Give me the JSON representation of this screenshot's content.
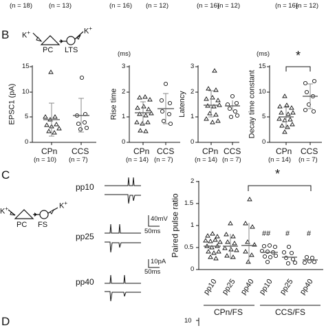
{
  "top_strip": {
    "labels": [
      "(n = 18)",
      "(n = 13)",
      "(n = 16)",
      "(n = 12)",
      "(n = 16)",
      "(n = 12)",
      "(n = 16)",
      "(n = 12)"
    ]
  },
  "panel_b": {
    "letter": "B",
    "schematic": {
      "pre": "PC",
      "post": "LTS",
      "ion_left": "K",
      "ion_right": "K",
      "sup": "+"
    },
    "charts": [
      {
        "unit": "",
        "ylabel": "EPSC1 (pA)",
        "yticks": [
          "0",
          "5",
          "10",
          "15"
        ],
        "categories": [
          "CPn",
          "CCS"
        ],
        "n": [
          "(n = 10)",
          "(n = 7)"
        ]
      },
      {
        "unit": "(ms)",
        "ylabel": "Rise time",
        "yticks": [
          "0",
          "1",
          "2",
          "3"
        ],
        "categories": [
          "CPn",
          "CCS"
        ],
        "n": [
          "(n = 14)",
          "(n = 7)"
        ]
      },
      {
        "unit": "",
        "ylabel": "Latency",
        "yticks": [
          "0",
          "1",
          "2",
          "3"
        ],
        "categories": [
          "CPn",
          "CCS"
        ],
        "n": [
          "(n = 14)",
          "(n = 7)"
        ]
      },
      {
        "unit": "(ms)",
        "ylabel": "Decay time constant",
        "yticks": [
          "0",
          "5",
          "10",
          "15"
        ],
        "categories": [
          "CPn",
          "CCS"
        ],
        "n": [
          "(n = 14)",
          "(n = 7)"
        ],
        "sig": "*"
      }
    ]
  },
  "panel_c": {
    "letter": "C",
    "schematic": {
      "pre": "PC",
      "post": "FS",
      "ion_left": "K",
      "ion_right": "K",
      "sup": "+"
    },
    "traces": [
      "pp10",
      "pp25",
      "pp40"
    ],
    "scalebar1": {
      "v": "40mV",
      "t": "50ms"
    },
    "scalebar2": {
      "v": "10pA",
      "t": "50ms"
    },
    "chart": {
      "ylabel": "Paired pulse ratio",
      "yticks": [
        "0",
        "0.5",
        "1",
        "1.5",
        "2"
      ],
      "categories": [
        "pp10",
        "pp25",
        "pp40",
        "pp10",
        "pp25",
        "pp40"
      ],
      "groups": [
        "CPn/FS",
        "CCS/FS"
      ],
      "sig": "*",
      "marks": [
        "",
        "",
        "",
        "##",
        "#",
        "#"
      ]
    }
  },
  "panel_d": {
    "letter": "D",
    "ytick": "10"
  }
}
